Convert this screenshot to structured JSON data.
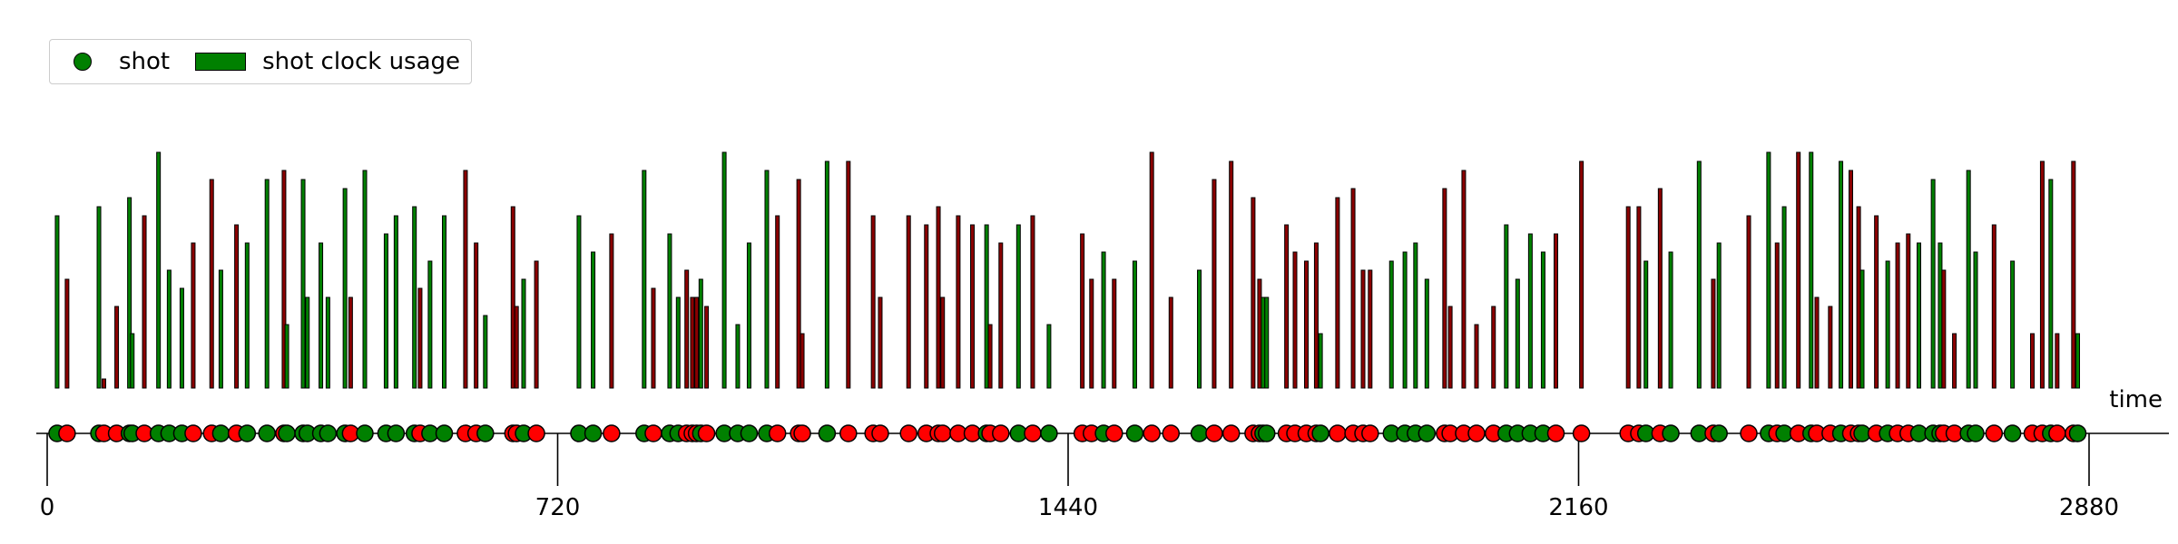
{
  "chart_data": {
    "type": "event timeline (bar + scatter)",
    "xlabel": "time",
    "xlim": [
      0,
      2880
    ],
    "xticks": [
      0,
      720,
      1440,
      2160,
      2880
    ],
    "colors": {
      "made": "#008000",
      "missed": "#ff0000",
      "bar_made": "#008000",
      "bar_missed": "#8b0000"
    },
    "legend": {
      "position": "upper-left",
      "entries": [
        {
          "label": "shot",
          "kind": "marker",
          "color": "#008000"
        },
        {
          "label": "shot clock usage",
          "kind": "patch",
          "color": "#008000"
        }
      ]
    },
    "shots": [
      {
        "t": 14,
        "made": true,
        "clock": 19
      },
      {
        "t": 28,
        "made": false,
        "clock": 12
      },
      {
        "t": 73,
        "made": true,
        "clock": 20
      },
      {
        "t": 80,
        "made": false,
        "clock": 1
      },
      {
        "t": 98,
        "made": false,
        "clock": 9
      },
      {
        "t": 116,
        "made": true,
        "clock": 21
      },
      {
        "t": 120,
        "made": true,
        "clock": 6
      },
      {
        "t": 137,
        "made": false,
        "clock": 19
      },
      {
        "t": 157,
        "made": true,
        "clock": 26
      },
      {
        "t": 172,
        "made": true,
        "clock": 13
      },
      {
        "t": 190,
        "made": true,
        "clock": 11
      },
      {
        "t": 206,
        "made": false,
        "clock": 16
      },
      {
        "t": 232,
        "made": false,
        "clock": 23
      },
      {
        "t": 245,
        "made": true,
        "clock": 13
      },
      {
        "t": 267,
        "made": false,
        "clock": 18
      },
      {
        "t": 282,
        "made": true,
        "clock": 16
      },
      {
        "t": 310,
        "made": true,
        "clock": 23
      },
      {
        "t": 334,
        "made": false,
        "clock": 24
      },
      {
        "t": 338,
        "made": true,
        "clock": 7
      },
      {
        "t": 361,
        "made": true,
        "clock": 23
      },
      {
        "t": 367,
        "made": true,
        "clock": 10
      },
      {
        "t": 386,
        "made": true,
        "clock": 16
      },
      {
        "t": 396,
        "made": true,
        "clock": 10
      },
      {
        "t": 420,
        "made": true,
        "clock": 22
      },
      {
        "t": 428,
        "made": false,
        "clock": 10
      },
      {
        "t": 448,
        "made": true,
        "clock": 24
      },
      {
        "t": 478,
        "made": true,
        "clock": 17
      },
      {
        "t": 492,
        "made": true,
        "clock": 19
      },
      {
        "t": 518,
        "made": true,
        "clock": 20
      },
      {
        "t": 526,
        "made": false,
        "clock": 11
      },
      {
        "t": 540,
        "made": true,
        "clock": 14
      },
      {
        "t": 560,
        "made": true,
        "clock": 19
      },
      {
        "t": 590,
        "made": false,
        "clock": 24
      },
      {
        "t": 605,
        "made": false,
        "clock": 16
      },
      {
        "t": 618,
        "made": true,
        "clock": 8
      },
      {
        "t": 657,
        "made": false,
        "clock": 20
      },
      {
        "t": 662,
        "made": false,
        "clock": 9
      },
      {
        "t": 672,
        "made": true,
        "clock": 12
      },
      {
        "t": 690,
        "made": false,
        "clock": 14
      },
      {
        "t": 750,
        "made": true,
        "clock": 19
      },
      {
        "t": 770,
        "made": true,
        "clock": 15
      },
      {
        "t": 796,
        "made": false,
        "clock": 17
      },
      {
        "t": 842,
        "made": true,
        "clock": 24
      },
      {
        "t": 855,
        "made": false,
        "clock": 11
      },
      {
        "t": 878,
        "made": true,
        "clock": 17
      },
      {
        "t": 890,
        "made": true,
        "clock": 10
      },
      {
        "t": 902,
        "made": false,
        "clock": 13
      },
      {
        "t": 910,
        "made": false,
        "clock": 10
      },
      {
        "t": 916,
        "made": false,
        "clock": 10
      },
      {
        "t": 922,
        "made": true,
        "clock": 12
      },
      {
        "t": 930,
        "made": false,
        "clock": 9
      },
      {
        "t": 955,
        "made": true,
        "clock": 26
      },
      {
        "t": 974,
        "made": true,
        "clock": 7
      },
      {
        "t": 990,
        "made": true,
        "clock": 16
      },
      {
        "t": 1015,
        "made": true,
        "clock": 24
      },
      {
        "t": 1030,
        "made": false,
        "clock": 19
      },
      {
        "t": 1060,
        "made": false,
        "clock": 23
      },
      {
        "t": 1065,
        "made": false,
        "clock": 6
      },
      {
        "t": 1100,
        "made": true,
        "clock": 25
      },
      {
        "t": 1130,
        "made": false,
        "clock": 25
      },
      {
        "t": 1165,
        "made": false,
        "clock": 19
      },
      {
        "t": 1175,
        "made": false,
        "clock": 10
      },
      {
        "t": 1215,
        "made": false,
        "clock": 19
      },
      {
        "t": 1240,
        "made": false,
        "clock": 18
      },
      {
        "t": 1257,
        "made": false,
        "clock": 20
      },
      {
        "t": 1263,
        "made": false,
        "clock": 10
      },
      {
        "t": 1285,
        "made": false,
        "clock": 19
      },
      {
        "t": 1305,
        "made": false,
        "clock": 18
      },
      {
        "t": 1325,
        "made": true,
        "clock": 18
      },
      {
        "t": 1330,
        "made": false,
        "clock": 7
      },
      {
        "t": 1345,
        "made": false,
        "clock": 16
      },
      {
        "t": 1370,
        "made": true,
        "clock": 18
      },
      {
        "t": 1390,
        "made": false,
        "clock": 19
      },
      {
        "t": 1413,
        "made": true,
        "clock": 7
      },
      {
        "t": 1460,
        "made": false,
        "clock": 17
      },
      {
        "t": 1473,
        "made": false,
        "clock": 12
      },
      {
        "t": 1490,
        "made": true,
        "clock": 15
      },
      {
        "t": 1505,
        "made": false,
        "clock": 12
      },
      {
        "t": 1534,
        "made": true,
        "clock": 14
      },
      {
        "t": 1558,
        "made": false,
        "clock": 26
      },
      {
        "t": 1585,
        "made": false,
        "clock": 10
      },
      {
        "t": 1625,
        "made": true,
        "clock": 13
      },
      {
        "t": 1646,
        "made": false,
        "clock": 23
      },
      {
        "t": 1670,
        "made": false,
        "clock": 25
      },
      {
        "t": 1701,
        "made": false,
        "clock": 21
      },
      {
        "t": 1710,
        "made": false,
        "clock": 12
      },
      {
        "t": 1715,
        "made": true,
        "clock": 10
      },
      {
        "t": 1720,
        "made": true,
        "clock": 10
      },
      {
        "t": 1748,
        "made": false,
        "clock": 18
      },
      {
        "t": 1760,
        "made": false,
        "clock": 15
      },
      {
        "t": 1776,
        "made": false,
        "clock": 14
      },
      {
        "t": 1790,
        "made": false,
        "clock": 16
      },
      {
        "t": 1796,
        "made": true,
        "clock": 6
      },
      {
        "t": 1820,
        "made": false,
        "clock": 21
      },
      {
        "t": 1842,
        "made": false,
        "clock": 22
      },
      {
        "t": 1856,
        "made": false,
        "clock": 13
      },
      {
        "t": 1866,
        "made": false,
        "clock": 13
      },
      {
        "t": 1896,
        "made": true,
        "clock": 14
      },
      {
        "t": 1915,
        "made": true,
        "clock": 15
      },
      {
        "t": 1930,
        "made": true,
        "clock": 16
      },
      {
        "t": 1946,
        "made": true,
        "clock": 12
      },
      {
        "t": 1971,
        "made": false,
        "clock": 22
      },
      {
        "t": 1979,
        "made": false,
        "clock": 9
      },
      {
        "t": 1998,
        "made": false,
        "clock": 24
      },
      {
        "t": 2016,
        "made": false,
        "clock": 7
      },
      {
        "t": 2040,
        "made": false,
        "clock": 9
      },
      {
        "t": 2058,
        "made": true,
        "clock": 18
      },
      {
        "t": 2074,
        "made": true,
        "clock": 12
      },
      {
        "t": 2092,
        "made": true,
        "clock": 17
      },
      {
        "t": 2110,
        "made": true,
        "clock": 15
      },
      {
        "t": 2128,
        "made": false,
        "clock": 17
      },
      {
        "t": 2164,
        "made": false,
        "clock": 25
      },
      {
        "t": 2230,
        "made": false,
        "clock": 20
      },
      {
        "t": 2245,
        "made": false,
        "clock": 20
      },
      {
        "t": 2255,
        "made": true,
        "clock": 14
      },
      {
        "t": 2275,
        "made": false,
        "clock": 22
      },
      {
        "t": 2290,
        "made": true,
        "clock": 15
      },
      {
        "t": 2330,
        "made": true,
        "clock": 25
      },
      {
        "t": 2350,
        "made": false,
        "clock": 12
      },
      {
        "t": 2358,
        "made": true,
        "clock": 16
      },
      {
        "t": 2400,
        "made": false,
        "clock": 19
      },
      {
        "t": 2428,
        "made": true,
        "clock": 26
      },
      {
        "t": 2440,
        "made": false,
        "clock": 16
      },
      {
        "t": 2450,
        "made": true,
        "clock": 20
      },
      {
        "t": 2470,
        "made": false,
        "clock": 26
      },
      {
        "t": 2488,
        "made": true,
        "clock": 26
      },
      {
        "t": 2496,
        "made": false,
        "clock": 10
      },
      {
        "t": 2515,
        "made": false,
        "clock": 9
      },
      {
        "t": 2530,
        "made": true,
        "clock": 25
      },
      {
        "t": 2544,
        "made": false,
        "clock": 24
      },
      {
        "t": 2555,
        "made": false,
        "clock": 20
      },
      {
        "t": 2560,
        "made": true,
        "clock": 13
      },
      {
        "t": 2580,
        "made": false,
        "clock": 19
      },
      {
        "t": 2596,
        "made": true,
        "clock": 14
      },
      {
        "t": 2610,
        "made": false,
        "clock": 16
      },
      {
        "t": 2625,
        "made": false,
        "clock": 17
      },
      {
        "t": 2640,
        "made": true,
        "clock": 16
      },
      {
        "t": 2660,
        "made": true,
        "clock": 23
      },
      {
        "t": 2670,
        "made": true,
        "clock": 16
      },
      {
        "t": 2675,
        "made": false,
        "clock": 13
      },
      {
        "t": 2690,
        "made": false,
        "clock": 6
      },
      {
        "t": 2710,
        "made": true,
        "clock": 24
      },
      {
        "t": 2720,
        "made": true,
        "clock": 15
      },
      {
        "t": 2746,
        "made": false,
        "clock": 18
      },
      {
        "t": 2772,
        "made": true,
        "clock": 14
      },
      {
        "t": 2800,
        "made": false,
        "clock": 6
      },
      {
        "t": 2814,
        "made": false,
        "clock": 25
      },
      {
        "t": 2826,
        "made": true,
        "clock": 23
      },
      {
        "t": 2835,
        "made": false,
        "clock": 6
      },
      {
        "t": 2858,
        "made": false,
        "clock": 25
      },
      {
        "t": 2864,
        "made": true,
        "clock": 6
      }
    ]
  }
}
